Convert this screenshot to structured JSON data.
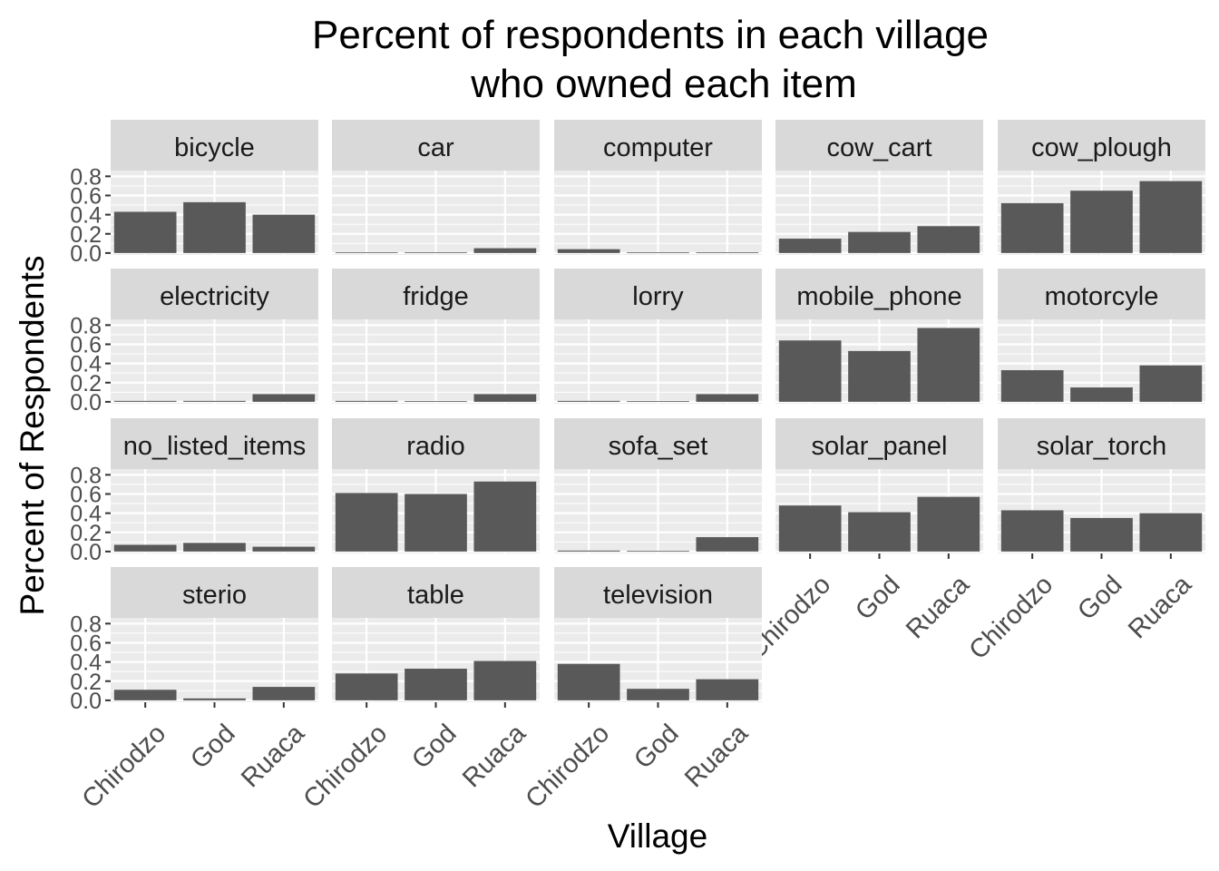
{
  "chart_data": {
    "type": "bar",
    "title_lines": [
      "Percent of respondents in each village",
      "who owned each item"
    ],
    "xlabel": "Village",
    "ylabel": "Percent of Respondents",
    "categories": [
      "Chirodzo",
      "God",
      "Ruaca"
    ],
    "y_ticks": [
      "0.0",
      "0.2",
      "0.4",
      "0.6",
      "0.8"
    ],
    "y_tick_values": [
      0,
      0.2,
      0.4,
      0.6,
      0.8
    ],
    "ylim": [
      -0.02,
      0.86
    ],
    "grid": true,
    "bar_color": "#595959",
    "panel_bg": "#ebebeb",
    "strip_bg": "#d9d9d9",
    "panels": [
      {
        "label": "bicycle",
        "values": [
          0.43,
          0.53,
          0.4
        ]
      },
      {
        "label": "car",
        "values": [
          0.0,
          0.0,
          0.05
        ]
      },
      {
        "label": "computer",
        "values": [
          0.04,
          0.0,
          0.0
        ]
      },
      {
        "label": "cow_cart",
        "values": [
          0.15,
          0.22,
          0.28
        ]
      },
      {
        "label": "cow_plough",
        "values": [
          0.52,
          0.65,
          0.75
        ]
      },
      {
        "label": "electricity",
        "values": [
          0.01,
          0.01,
          0.08
        ]
      },
      {
        "label": "fridge",
        "values": [
          0.01,
          0.0,
          0.08
        ]
      },
      {
        "label": "lorry",
        "values": [
          0.01,
          0.0,
          0.08
        ]
      },
      {
        "label": "mobile_phone",
        "values": [
          0.64,
          0.53,
          0.77
        ]
      },
      {
        "label": "motorcyle",
        "values": [
          0.33,
          0.15,
          0.38
        ]
      },
      {
        "label": "no_listed_items",
        "values": [
          0.07,
          0.09,
          0.05
        ]
      },
      {
        "label": "radio",
        "values": [
          0.61,
          0.6,
          0.73
        ]
      },
      {
        "label": "sofa_set",
        "values": [
          0.01,
          0.0,
          0.15
        ]
      },
      {
        "label": "solar_panel",
        "values": [
          0.48,
          0.41,
          0.57
        ]
      },
      {
        "label": "solar_torch",
        "values": [
          0.43,
          0.35,
          0.4
        ]
      },
      {
        "label": "sterio",
        "values": [
          0.11,
          0.02,
          0.14
        ]
      },
      {
        "label": "table",
        "values": [
          0.28,
          0.33,
          0.41
        ]
      },
      {
        "label": "television",
        "values": [
          0.38,
          0.12,
          0.22
        ]
      }
    ]
  }
}
